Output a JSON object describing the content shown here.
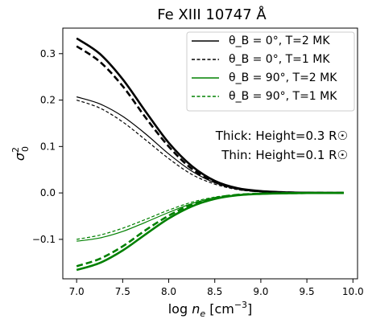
{
  "chart_data": {
    "type": "line",
    "title": "Fe XIII 10747 Å",
    "xlabel": "log n_e [cm^-3]",
    "ylabel": "σ₀²",
    "xlim": [
      6.85,
      10.05
    ],
    "ylim": [
      -0.185,
      0.355
    ],
    "xticks": [
      7.0,
      7.5,
      8.0,
      8.5,
      9.0,
      9.5,
      10.0
    ],
    "xtick_labels": [
      "7.0",
      "7.5",
      "8.0",
      "8.5",
      "9.0",
      "9.5",
      "10.0"
    ],
    "yticks": [
      -0.1,
      0.0,
      0.1,
      0.2,
      0.3
    ],
    "ytick_labels": [
      "−0.1",
      "0.0",
      "0.1",
      "0.2",
      "0.3"
    ],
    "grid": false,
    "legend_position": "top-right",
    "legend": [
      {
        "label": "θ_B = 0°, T=2 MK",
        "color": "#000000",
        "dash": "solid"
      },
      {
        "label": "θ_B = 0°, T=1 MK",
        "color": "#000000",
        "dash": "dashed"
      },
      {
        "label": "θ_B = 90°, T=2 MK",
        "color": "#008000",
        "dash": "solid"
      },
      {
        "label": "θ_B = 90°, T=1 MK",
        "color": "#008000",
        "dash": "dashed"
      }
    ],
    "annotations": [
      "Thick: Height=0.3 R☉",
      "Thin: Height=0.1 R☉"
    ],
    "x": [
      7.0,
      7.25,
      7.5,
      7.75,
      8.0,
      8.25,
      8.5,
      8.75,
      9.0,
      9.25,
      9.5,
      9.75,
      9.9
    ],
    "series": [
      {
        "id": "thick-0-2mk",
        "color": "#000000",
        "dash": "solid",
        "thick": true,
        "values": [
          0.333,
          0.3,
          0.245,
          0.175,
          0.108,
          0.058,
          0.026,
          0.01,
          0.004,
          0.0015,
          0.0005,
          0.0002,
          0.0001
        ]
      },
      {
        "id": "thick-0-1mk",
        "color": "#000000",
        "dash": "dashed",
        "thick": true,
        "values": [
          0.316,
          0.283,
          0.23,
          0.162,
          0.1,
          0.052,
          0.024,
          0.009,
          0.003,
          0.0012,
          0.0004,
          0.0002,
          0.0001
        ]
      },
      {
        "id": "thin-0-2mk",
        "color": "#000000",
        "dash": "solid",
        "thick": false,
        "values": [
          0.207,
          0.192,
          0.165,
          0.127,
          0.084,
          0.047,
          0.022,
          0.008,
          0.003,
          0.001,
          0.0004,
          0.0001,
          0.0
        ]
      },
      {
        "id": "thin-0-1mk",
        "color": "#000000",
        "dash": "dashed",
        "thick": false,
        "values": [
          0.2,
          0.183,
          0.153,
          0.114,
          0.074,
          0.04,
          0.019,
          0.007,
          0.0025,
          0.001,
          0.0003,
          0.0001,
          0.0
        ]
      },
      {
        "id": "thick-90-2mk",
        "color": "#008000",
        "dash": "solid",
        "thick": true,
        "values": [
          -0.166,
          -0.151,
          -0.124,
          -0.089,
          -0.055,
          -0.029,
          -0.013,
          -0.005,
          -0.002,
          -0.0007,
          -0.0002,
          -0.0001,
          0.0
        ]
      },
      {
        "id": "thick-90-1mk",
        "color": "#008000",
        "dash": "dashed",
        "thick": true,
        "values": [
          -0.158,
          -0.142,
          -0.115,
          -0.08,
          -0.049,
          -0.025,
          -0.011,
          -0.004,
          -0.0015,
          -0.0006,
          -0.0002,
          -0.0001,
          0.0
        ]
      },
      {
        "id": "thin-90-2mk",
        "color": "#008000",
        "dash": "solid",
        "thick": false,
        "values": [
          -0.104,
          -0.097,
          -0.083,
          -0.063,
          -0.042,
          -0.023,
          -0.011,
          -0.004,
          -0.0015,
          -0.0005,
          -0.0002,
          -0.0001,
          0.0
        ]
      },
      {
        "id": "thin-90-1mk",
        "color": "#008000",
        "dash": "dashed",
        "thick": false,
        "values": [
          -0.1,
          -0.091,
          -0.076,
          -0.057,
          -0.037,
          -0.02,
          -0.009,
          -0.0035,
          -0.0012,
          -0.0004,
          -0.0001,
          0.0,
          0.0
        ]
      }
    ]
  }
}
